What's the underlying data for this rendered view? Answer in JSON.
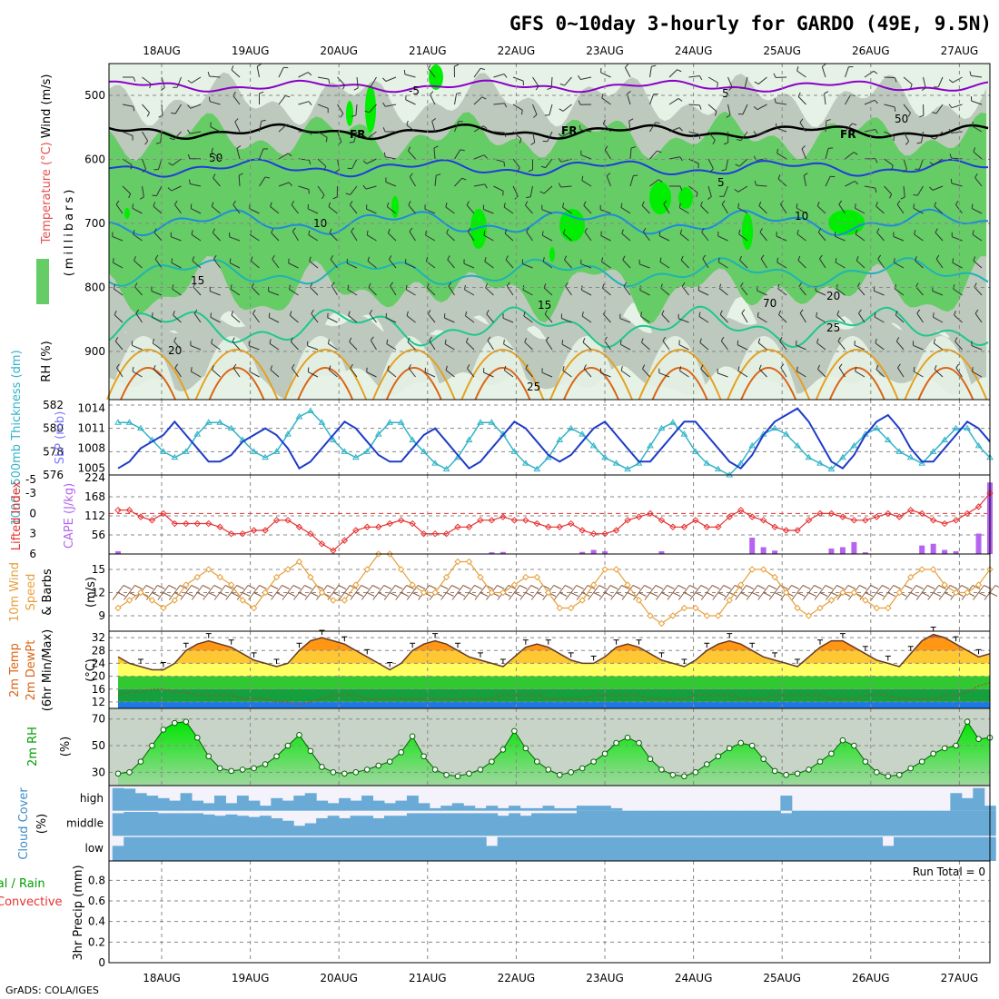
{
  "title": "GFS 0~10day 3-hourly for GARDO (49E, 9.5N)",
  "footer": "GrADS: COLA/IGES",
  "dates": [
    "18AUG",
    "19AUG",
    "20AUG",
    "21AUG",
    "22AUG",
    "23AUG",
    "24AUG",
    "25AUG",
    "26AUG",
    "27AUG"
  ],
  "colors": {
    "rh_light": "#e6f2e6",
    "rh_grey": "#bdc9bd",
    "rh_green": "#66cc66",
    "rh_bright": "#00ee00",
    "t_minus5": "#8a00c8",
    "t_fr": "#000000",
    "t_5": "#1e3cdc",
    "t_10": "#1e8cdc",
    "t_15": "#1eb4b4",
    "t_20": "#1ec88c",
    "t_25": "#e6a01e",
    "t_30": "#dc6414",
    "slp": "#1e3cc8",
    "thick": "#32b4c8",
    "li": "#e63232",
    "cape": "#b464f0",
    "wind10": "#e6a03c",
    "rh2m": "#00c800",
    "cloud": "#6aaad6",
    "clear": "#f4f2fa"
  },
  "panels": {
    "upper": {
      "ylabel": "(millibars)",
      "legend_rh": "RH (%)",
      "legend_temp": "Temperature (°C)",
      "legend_wind": "Wind (m/s)",
      "yticks": [
        500,
        600,
        700,
        800,
        900
      ],
      "contour_labels": [
        "-5",
        "FR",
        "FR",
        "FR",
        "5",
        "5",
        "10",
        "10",
        "15",
        "15",
        "20",
        "20",
        "25",
        "25",
        "50",
        "50",
        "70"
      ]
    },
    "slp": {
      "label_left": "1000~500mb Thickness (dm)",
      "label_right": "SLP (mb)",
      "thick_ticks": [
        576,
        578,
        580,
        582
      ],
      "slp_ticks": [
        1005,
        1008,
        1011,
        1014
      ]
    },
    "cape": {
      "label_left": "Lifted Index",
      "label_right": "CAPE (J/kg)",
      "li_ticks": [
        "-5",
        "-3",
        "0",
        "3",
        "6"
      ],
      "cape_ticks": [
        56,
        112,
        168,
        224
      ]
    },
    "wind": {
      "label1": "10m Wind",
      "label2": "Speed",
      "label3": "& Barbs",
      "unit": "(m/s)",
      "yticks": [
        9,
        12,
        15
      ]
    },
    "temp": {
      "label1": "2m Temp",
      "label2": "2m DewPt",
      "label3": "(6hr Min/Max)",
      "unit": "(°C)",
      "yticks": [
        12,
        16,
        20,
        24,
        28,
        32
      ]
    },
    "rh": {
      "label": "2m RH",
      "unit": "(%)",
      "yticks": [
        30,
        50,
        70
      ]
    },
    "cloud": {
      "label": "Cloud Cover",
      "unit": "(%)",
      "levels": [
        "high",
        "middle",
        "low"
      ]
    },
    "precip": {
      "label_total": "Total / Rain",
      "label_conv": "Convective",
      "ylabel": "3hr Precip (mm)",
      "run_total": "Run Total = 0",
      "yticks": [
        "0",
        "0.2",
        "0.4",
        "0.6",
        "0.8"
      ]
    }
  },
  "chart_data": {
    "type": "line",
    "x_unit": "3-hourly steps from 17AUG 15Z",
    "slp_mb": [
      1005,
      1006,
      1008,
      1009,
      1010,
      1012,
      1010,
      1008,
      1006,
      1006,
      1007,
      1009,
      1010,
      1011,
      1010,
      1008,
      1005,
      1006,
      1008,
      1010,
      1012,
      1011,
      1009,
      1007,
      1006,
      1006,
      1008,
      1010,
      1011,
      1009,
      1007,
      1005,
      1006,
      1008,
      1010,
      1012,
      1011,
      1009,
      1007,
      1006,
      1007,
      1009,
      1011,
      1012,
      1010,
      1008,
      1006,
      1006,
      1008,
      1010,
      1012,
      1012,
      1010,
      1008,
      1006,
      1005,
      1007,
      1010,
      1012,
      1013,
      1014,
      1012,
      1009,
      1006,
      1005,
      1007,
      1010,
      1012,
      1013,
      1011,
      1008,
      1006,
      1006,
      1008,
      1010,
      1012,
      1011,
      1009
    ],
    "thickness_dm": [
      580.5,
      580.5,
      580,
      579,
      578,
      577.5,
      578,
      579.5,
      580.5,
      580.5,
      580,
      579,
      578,
      577.5,
      578,
      579.5,
      581,
      581.5,
      580.5,
      579,
      578,
      577.5,
      578,
      579.5,
      580.5,
      580.5,
      579,
      578,
      577,
      576.5,
      577.5,
      579,
      580.5,
      580.5,
      579.5,
      578,
      577,
      576.5,
      577.5,
      579,
      580,
      579.5,
      578.5,
      577.5,
      577,
      576.5,
      577,
      578.5,
      580,
      580.5,
      579.5,
      578,
      577,
      576.5,
      576,
      577,
      578.5,
      579.5,
      580,
      579.5,
      578.5,
      577.5,
      577,
      576.5,
      577.5,
      578.5,
      579.5,
      580,
      579,
      578,
      577.5,
      577,
      578,
      579,
      580,
      580,
      578.5,
      577.5
    ],
    "lifted_index": [
      -0.5,
      -0.5,
      0.5,
      1,
      0,
      1.5,
      1.5,
      1.5,
      1.5,
      2,
      3,
      3,
      2.5,
      2.5,
      1,
      1,
      2,
      3,
      4.5,
      5.5,
      4,
      2.5,
      2,
      2,
      1.5,
      1,
      1.5,
      3,
      3,
      3,
      2,
      2,
      1,
      1,
      0.5,
      1,
      1,
      1.5,
      2,
      2,
      1.5,
      2.5,
      3,
      3,
      2.5,
      1,
      0.5,
      0,
      1,
      2,
      2,
      1,
      2,
      2,
      0.5,
      -0.5,
      0.5,
      1,
      2,
      2.5,
      2.5,
      1,
      0,
      0,
      0.5,
      1,
      1,
      0.5,
      0,
      0.5,
      -0.5,
      0,
      1,
      1.5,
      1,
      0,
      -1,
      -3
    ],
    "cape_jkg": [
      8,
      0,
      0,
      0,
      0,
      0,
      0,
      0,
      0,
      0,
      0,
      0,
      0,
      0,
      0,
      0,
      0,
      0,
      0,
      0,
      0,
      0,
      0,
      0,
      0,
      0,
      0,
      0,
      0,
      0,
      0,
      0,
      0,
      5,
      6,
      0,
      0,
      0,
      0,
      0,
      0,
      6,
      12,
      8,
      0,
      0,
      0,
      0,
      8,
      0,
      0,
      0,
      0,
      0,
      0,
      0,
      48,
      20,
      10,
      0,
      0,
      0,
      0,
      16,
      20,
      35,
      5,
      0,
      0,
      0,
      0,
      25,
      30,
      12,
      8,
      0,
      60,
      210
    ],
    "wind10_ms": [
      10,
      11,
      12,
      11,
      10,
      11,
      13,
      14,
      15,
      14,
      13,
      11,
      10,
      12,
      14,
      15,
      16,
      14,
      12,
      11,
      11,
      13,
      15,
      17,
      17,
      15,
      13,
      12,
      12,
      14,
      16,
      16,
      14,
      12,
      12,
      13,
      14,
      14,
      12,
      10,
      10,
      11,
      13,
      15,
      15,
      13,
      11,
      9,
      8,
      9,
      10,
      10,
      9,
      9,
      11,
      13,
      15,
      15,
      14,
      12,
      10,
      9,
      10,
      11,
      12,
      12,
      11,
      10,
      10,
      12,
      14,
      15,
      15,
      13,
      12,
      12,
      13,
      15
    ],
    "temp2m_c": [
      26,
      24,
      23,
      22,
      22,
      24,
      28,
      30,
      31,
      30,
      29,
      27,
      25,
      24,
      23,
      24,
      28,
      31,
      32,
      31,
      30,
      28,
      26,
      24,
      22,
      24,
      28,
      30,
      31,
      30,
      28,
      26,
      25,
      24,
      23,
      26,
      29,
      30,
      29,
      27,
      25,
      24,
      24,
      26,
      29,
      30,
      29,
      27,
      25,
      24,
      23,
      25,
      28,
      30,
      31,
      30,
      28,
      26,
      25,
      24,
      23,
      26,
      29,
      31,
      31,
      29,
      27,
      25,
      24,
      23,
      27,
      31,
      33,
      32,
      30,
      28,
      26,
      27
    ],
    "dewpt2m_c": [
      14,
      15,
      15,
      16,
      16,
      15,
      15,
      14,
      14,
      14,
      14,
      13,
      13,
      13,
      12,
      12,
      11,
      12,
      13,
      14,
      14,
      14,
      13,
      13,
      13,
      13,
      13,
      13,
      13,
      13,
      13,
      13,
      13,
      13,
      14,
      14,
      14,
      14,
      13,
      13,
      13,
      13,
      14,
      14,
      14,
      14,
      14,
      13,
      13,
      13,
      13,
      14,
      14,
      14,
      14,
      13,
      13,
      13,
      14,
      14,
      14,
      14,
      14,
      13,
      13,
      13,
      14,
      14,
      14,
      13,
      13,
      13,
      13,
      14,
      14,
      15,
      17,
      18
    ],
    "rh2m_pct": [
      29,
      30,
      38,
      50,
      62,
      67,
      68,
      56,
      42,
      33,
      31,
      32,
      33,
      36,
      42,
      50,
      58,
      46,
      34,
      30,
      29,
      30,
      32,
      35,
      38,
      45,
      57,
      42,
      32,
      28,
      27,
      29,
      32,
      38,
      47,
      61,
      48,
      38,
      32,
      28,
      30,
      33,
      38,
      44,
      52,
      56,
      52,
      40,
      32,
      28,
      27,
      30,
      36,
      42,
      48,
      52,
      50,
      40,
      31,
      28,
      29,
      32,
      38,
      44,
      54,
      50,
      38,
      30,
      27,
      28,
      33,
      38,
      44,
      48,
      50,
      68,
      55,
      56
    ],
    "cloud_high_pct": [
      90,
      88,
      70,
      60,
      50,
      40,
      70,
      40,
      30,
      60,
      30,
      60,
      40,
      20,
      50,
      40,
      60,
      70,
      40,
      30,
      50,
      40,
      60,
      40,
      30,
      40,
      60,
      30,
      10,
      20,
      30,
      20,
      10,
      20,
      10,
      20,
      10,
      10,
      20,
      10,
      10,
      20,
      20,
      20,
      10,
      0,
      0,
      0,
      0,
      0,
      0,
      0,
      0,
      0,
      0,
      0,
      0,
      0,
      0,
      60,
      0,
      0,
      0,
      0,
      0,
      0,
      0,
      0,
      0,
      0,
      0,
      0,
      0,
      0,
      70,
      50,
      90,
      20
    ],
    "cloud_mid_pct": [
      90,
      95,
      95,
      95,
      90,
      90,
      90,
      90,
      85,
      80,
      85,
      80,
      75,
      80,
      70,
      60,
      40,
      50,
      70,
      80,
      70,
      80,
      80,
      70,
      80,
      80,
      90,
      90,
      90,
      90,
      90,
      90,
      90,
      90,
      80,
      90,
      80,
      90,
      90,
      90,
      90,
      100,
      100,
      100,
      100,
      100,
      100,
      100,
      100,
      100,
      100,
      100,
      100,
      100,
      100,
      100,
      100,
      100,
      100,
      90,
      100,
      100,
      100,
      100,
      100,
      100,
      100,
      100,
      100,
      100,
      100,
      100,
      100,
      100,
      100,
      100,
      100,
      100
    ],
    "cloud_low_pct": [
      60,
      95,
      95,
      95,
      95,
      95,
      95,
      95,
      95,
      95,
      95,
      95,
      95,
      95,
      95,
      95,
      95,
      95,
      95,
      95,
      95,
      95,
      95,
      95,
      95,
      95,
      95,
      95,
      95,
      95,
      95,
      95,
      95,
      60,
      95,
      95,
      95,
      95,
      95,
      95,
      95,
      95,
      95,
      95,
      95,
      95,
      95,
      95,
      95,
      95,
      95,
      95,
      95,
      95,
      95,
      95,
      95,
      95,
      95,
      95,
      95,
      95,
      95,
      95,
      95,
      95,
      95,
      95,
      60,
      95,
      95,
      95,
      95,
      95,
      95,
      95,
      95,
      95
    ]
  }
}
